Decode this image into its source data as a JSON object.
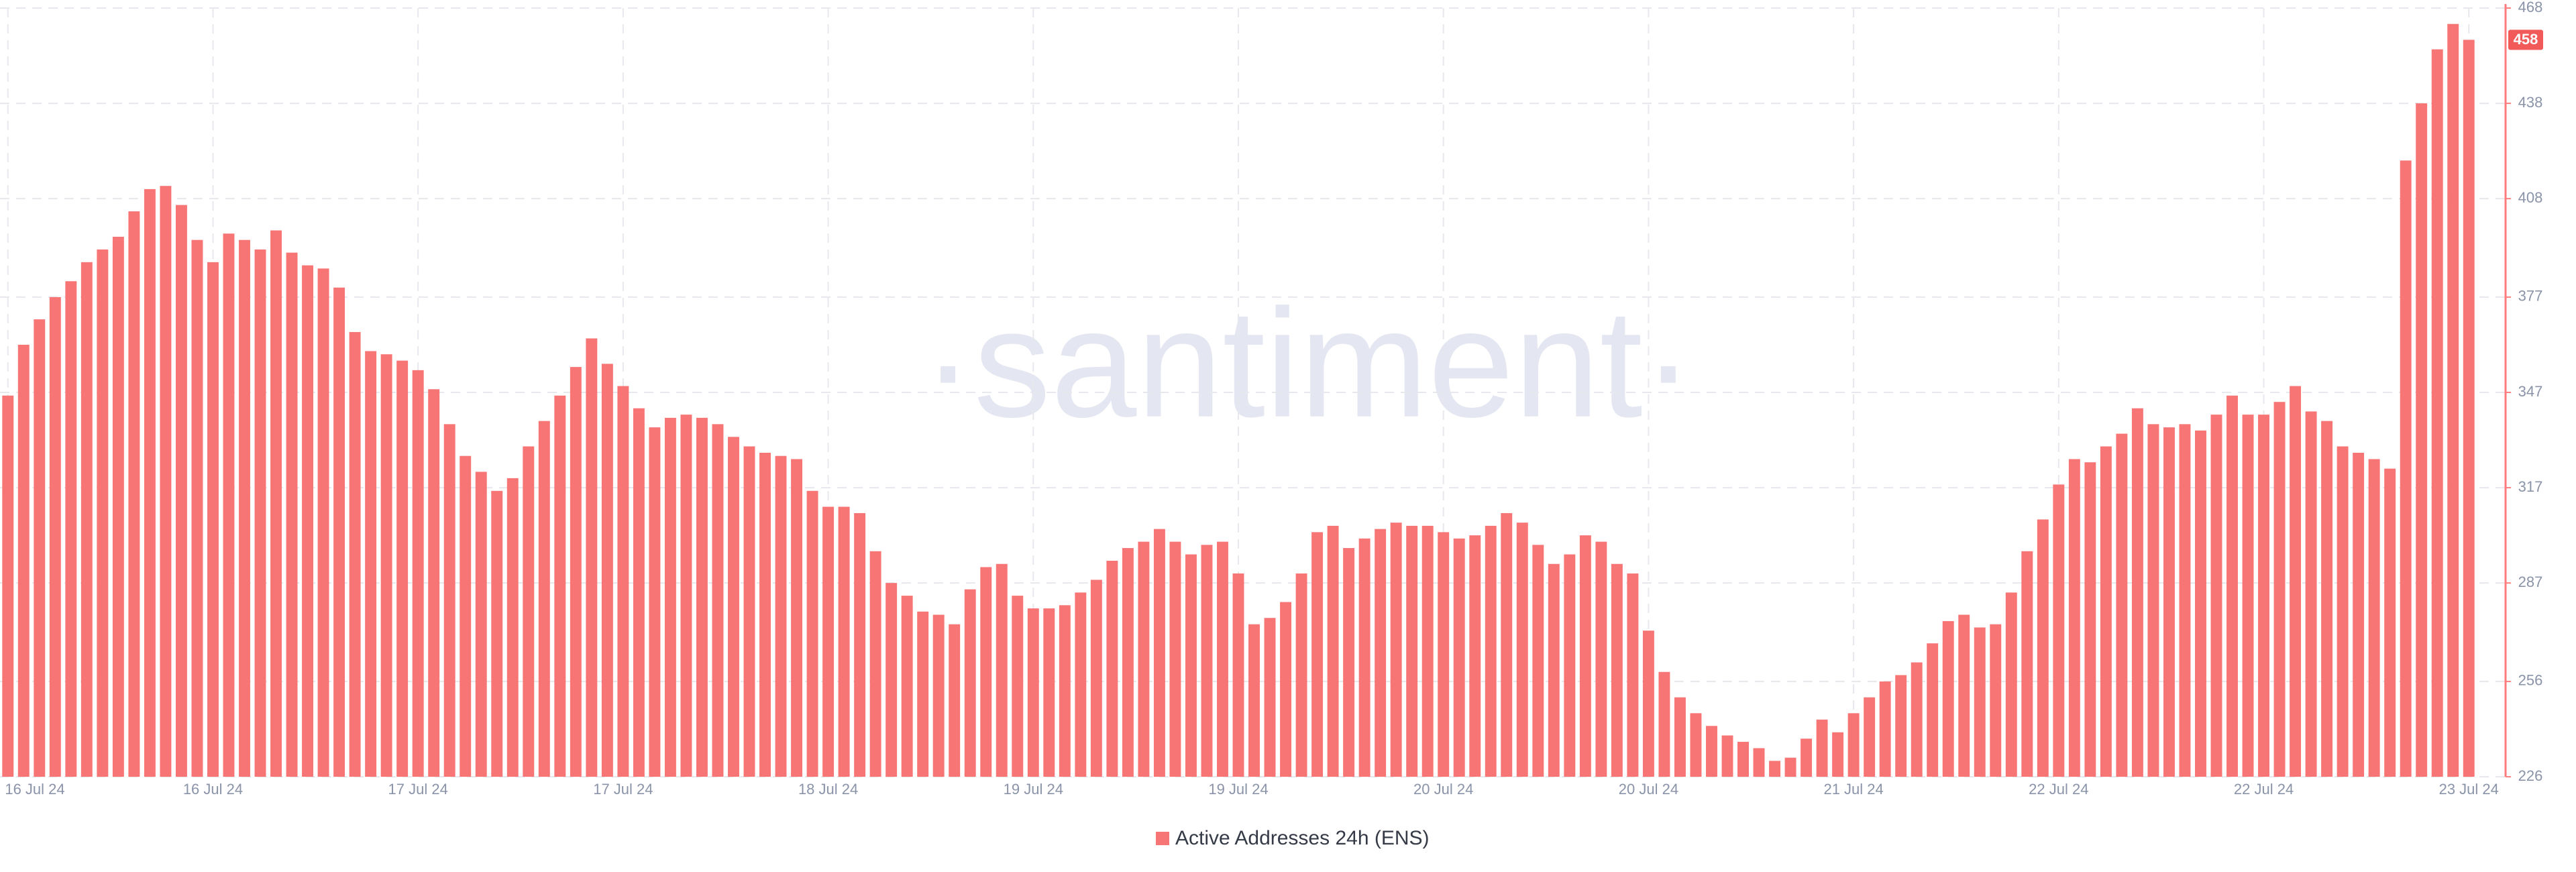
{
  "chart_data": {
    "type": "bar",
    "watermark": "·santiment·",
    "categories": [
      "16 Jul 24",
      null,
      null,
      null,
      null,
      null,
      null,
      null,
      null,
      null,
      null,
      null,
      null,
      "16 Jul 24",
      null,
      null,
      null,
      null,
      null,
      null,
      null,
      null,
      null,
      null,
      null,
      null,
      "17 Jul 24",
      null,
      null,
      null,
      null,
      null,
      null,
      null,
      null,
      null,
      null,
      null,
      null,
      "17 Jul 24",
      null,
      null,
      null,
      null,
      null,
      null,
      null,
      null,
      null,
      null,
      null,
      null,
      "18 Jul 24",
      null,
      null,
      null,
      null,
      null,
      null,
      null,
      null,
      null,
      null,
      null,
      null,
      "19 Jul 24",
      null,
      null,
      null,
      null,
      null,
      null,
      null,
      null,
      null,
      null,
      null,
      null,
      "19 Jul 24",
      null,
      null,
      null,
      null,
      null,
      null,
      null,
      null,
      null,
      null,
      null,
      null,
      "20 Jul 24",
      null,
      null,
      null,
      null,
      null,
      null,
      null,
      null,
      null,
      null,
      null,
      null,
      "20 Jul 24",
      null,
      null,
      null,
      null,
      null,
      null,
      null,
      null,
      null,
      null,
      null,
      null,
      "21 Jul 24",
      null,
      null,
      null,
      null,
      null,
      null,
      null,
      null,
      null,
      null,
      null,
      null,
      "22 Jul 24",
      null,
      null,
      null,
      null,
      null,
      null,
      null,
      null,
      null,
      null,
      null,
      null,
      "22 Jul 24",
      null,
      null,
      null,
      null,
      null,
      null,
      null,
      null,
      null,
      null,
      null,
      null,
      "23 Jul 24"
    ],
    "series": [
      {
        "name": "Active Addresses 24h (ENS)",
        "color": "#f87575",
        "values": [
          346,
          362,
          370,
          377,
          382,
          388,
          392,
          396,
          404,
          411,
          412,
          406,
          395,
          388,
          397,
          395,
          392,
          398,
          391,
          387,
          386,
          380,
          366,
          360,
          359,
          357,
          354,
          348,
          337,
          327,
          322,
          316,
          320,
          330,
          338,
          346,
          355,
          364,
          356,
          349,
          342,
          336,
          339,
          340,
          339,
          337,
          333,
          330,
          328,
          327,
          326,
          316,
          311,
          311,
          309,
          297,
          287,
          283,
          278,
          277,
          274,
          285,
          292,
          293,
          283,
          279,
          279,
          280,
          284,
          288,
          294,
          298,
          300,
          304,
          300,
          296,
          299,
          300,
          290,
          274,
          276,
          281,
          290,
          303,
          305,
          298,
          301,
          304,
          306,
          305,
          305,
          303,
          301,
          302,
          305,
          309,
          306,
          299,
          293,
          296,
          302,
          300,
          293,
          290,
          272,
          259,
          251,
          246,
          242,
          239,
          237,
          235,
          231,
          232,
          238,
          244,
          240,
          246,
          251,
          256,
          258,
          262,
          268,
          275,
          277,
          273,
          274,
          284,
          297,
          307,
          318,
          326,
          325,
          330,
          334,
          342,
          337,
          336,
          337,
          335,
          340,
          346,
          340,
          340,
          344,
          349,
          341,
          338,
          330,
          328,
          326,
          323,
          420,
          438,
          455,
          463,
          458
        ]
      }
    ],
    "ylim": [
      226,
      468
    ],
    "yticks": [
      226,
      256,
      287,
      317,
      347,
      377,
      408,
      438,
      468
    ],
    "grid": true
  }
}
